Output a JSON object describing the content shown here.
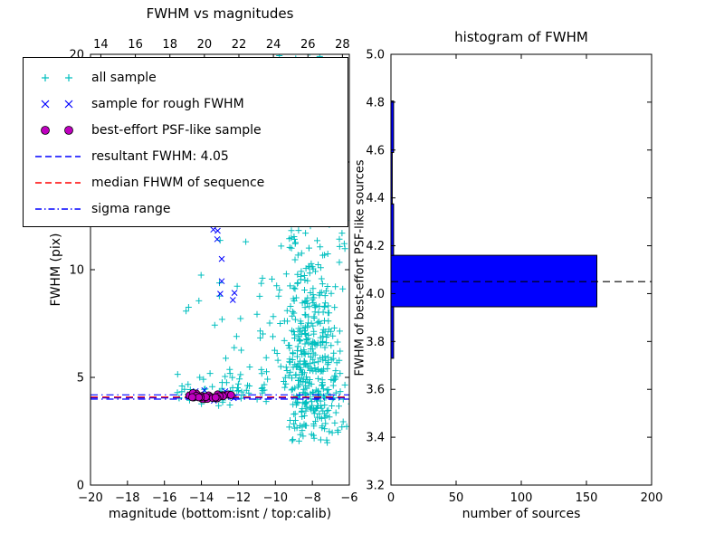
{
  "chart_data": [
    {
      "id": "fwhm-vs-magnitudes",
      "type": "scatter",
      "title": "FWHM vs magnitudes",
      "xlabel": "magnitude (bottom:isnt / top:calib)",
      "ylabel": "FWHM (pix)",
      "xlim": [
        -20,
        -6
      ],
      "ylim": [
        0,
        20
      ],
      "top_xlim": [
        13.4,
        28.4
      ],
      "xticks": [
        -20,
        -18,
        -16,
        -14,
        -12,
        -10,
        -8,
        -6
      ],
      "yticks": [
        0,
        5,
        10,
        15,
        20
      ],
      "top_xticks": [
        14,
        16,
        18,
        20,
        22,
        24,
        26,
        28
      ],
      "grid": false,
      "legend_position": "upper-left",
      "series": [
        {
          "name": "all sample",
          "marker": "plus",
          "color": "#00bfbf",
          "seed": 42,
          "clusters": [
            {
              "n": 230,
              "cx": -8.2,
              "sx": 0.7,
              "cy": 5.0,
              "sy": 1.5,
              "ymin": 2.1
            },
            {
              "n": 140,
              "cx": -8.0,
              "sx": 0.9,
              "cy": 8.3,
              "sy": 2.0
            },
            {
              "n": 80,
              "cx": -8.4,
              "sx": 0.95,
              "cy": 13.0,
              "sy": 2.4
            },
            {
              "n": 45,
              "cx": -8.6,
              "sx": 0.85,
              "cy": 17.8,
              "sy": 1.7
            },
            {
              "n": 60,
              "cx": -12.9,
              "sx": 1.4,
              "cy": 4.4,
              "sy": 0.4,
              "xclip": [
                -15.6,
                -10.6
              ]
            },
            {
              "n": 22,
              "cx": -13.2,
              "sx": 1.1,
              "cy": 8.2,
              "sy": 2.4
            },
            {
              "n": 40,
              "cx": -6.9,
              "sx": 0.5,
              "cy": 3.5,
              "sy": 0.9,
              "ymin": 1.8
            },
            {
              "n": 16,
              "cx": -10.7,
              "sx": 0.6,
              "cy": 6.2,
              "sy": 2.0
            }
          ],
          "points": [
            [
              -15.3,
              4.3
            ],
            [
              -15.05,
              4.6
            ],
            [
              -14.6,
              4.25
            ],
            [
              -11.6,
              11.3
            ],
            [
              -6.4,
              2.7
            ],
            [
              -8.9,
              19.8
            ],
            [
              -9.4,
              19.4
            ],
            [
              -7.6,
              19.9
            ],
            [
              -10.3,
              13.2
            ],
            [
              -12.1,
              6.9
            ],
            [
              -6.6,
              17.5
            ],
            [
              -7.1,
              15.2
            ]
          ]
        },
        {
          "name": "sample for rough FWHM",
          "marker": "x",
          "color": "#0000ff",
          "seed": 7,
          "clusters": [
            {
              "n": 7,
              "cx": -13.1,
              "sx": 0.35,
              "cy": 11.9,
              "sy": 0.45
            },
            {
              "n": 4,
              "cx": -12.6,
              "sx": 0.25,
              "cy": 9.0,
              "sy": 0.35
            },
            {
              "n": 11,
              "cx": -13.5,
              "sx": 0.7,
              "cy": 4.18,
              "sy": 0.12,
              "xclip": [
                -14.7,
                -12.25
              ]
            }
          ],
          "points": [
            [
              -12.35,
              12.6
            ],
            [
              -12.9,
              10.5
            ],
            [
              -14.15,
              4.05
            ]
          ]
        },
        {
          "name": "best-effort PSF-like sample",
          "marker": "circle",
          "color": "#bf00bf",
          "edge": "#000000",
          "seed": 3,
          "clusters": [
            {
              "n": 26,
              "cx": -13.5,
              "sx": 0.6,
              "cy": 4.12,
              "sy": 0.09,
              "xclip": [
                -14.65,
                -12.3
              ]
            }
          ],
          "points": [
            [
              -12.4,
              4.18
            ],
            [
              -14.5,
              4.08
            ]
          ]
        }
      ],
      "lines": [
        {
          "name": "resultant FWHM",
          "y": 4.05,
          "color": "#0000ff",
          "style": "dashed"
        },
        {
          "name": "median FHWM of sequence",
          "y": 4.09,
          "color": "#ff0000",
          "style": "dashed"
        },
        {
          "name": "sigma range",
          "y": 3.99,
          "color": "#0000ff",
          "style": "dashdot"
        },
        {
          "name": "sigma range",
          "y": 4.19,
          "color": "#0000ff",
          "style": "dashdot"
        }
      ],
      "legend": [
        {
          "label": "all sample",
          "marker": "plus",
          "color": "#00bfbf"
        },
        {
          "label": "sample for rough FWHM",
          "marker": "x",
          "color": "#0000ff"
        },
        {
          "label": "best-effort PSF-like sample",
          "marker": "circle",
          "color": "#bf00bf"
        },
        {
          "label": "resultant FWHM: 4.05",
          "marker": "dashed",
          "color": "#0000ff"
        },
        {
          "label": "median FHWM of sequence",
          "marker": "dashed",
          "color": "#ff0000"
        },
        {
          "label": "sigma range",
          "marker": "dashdot",
          "color": "#0000ff"
        }
      ]
    },
    {
      "id": "histogram-of-fwhm",
      "type": "bar",
      "orientation": "horizontal",
      "title": "histogram of FWHM",
      "xlabel": "number of sources",
      "ylabel": "FWHM of best-effort PSF-like sources",
      "xlim": [
        0,
        200
      ],
      "ylim": [
        3.2,
        5.0
      ],
      "xticks": [
        0,
        50,
        100,
        150,
        200
      ],
      "yticks": [
        3.2,
        3.4,
        3.6,
        3.8,
        4.0,
        4.2,
        4.4,
        4.6,
        4.8,
        5.0
      ],
      "grid": false,
      "bar_color": "#0000ff",
      "bar_edge": "#000000",
      "bins": [
        {
          "y0": 3.73,
          "y1": 3.945,
          "count": 2
        },
        {
          "y0": 3.945,
          "y1": 4.16,
          "count": 158
        },
        {
          "y0": 4.16,
          "y1": 4.375,
          "count": 2
        },
        {
          "y0": 4.375,
          "y1": 4.59,
          "count": 1
        },
        {
          "y0": 4.59,
          "y1": 4.805,
          "count": 2
        }
      ],
      "median_line": {
        "y": 4.05,
        "color": "#000000",
        "style": "dashed"
      }
    }
  ]
}
